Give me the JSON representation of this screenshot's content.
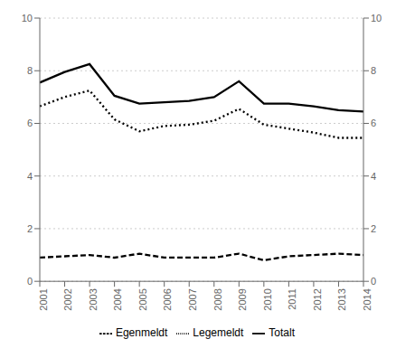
{
  "chart_data": {
    "type": "line",
    "x": [
      2001,
      2002,
      2003,
      2004,
      2005,
      2006,
      2007,
      2008,
      2009,
      2010,
      2011,
      2012,
      2013,
      2014
    ],
    "series": [
      {
        "name": "Totalt",
        "color": "#000000",
        "line_style": "solid",
        "values": [
          7.55,
          7.95,
          8.25,
          7.05,
          6.75,
          6.8,
          6.85,
          7.0,
          7.6,
          6.75,
          6.75,
          6.65,
          6.5,
          6.45
        ]
      },
      {
        "name": "Legemeldt",
        "color": "#000000",
        "line_style": "dotted",
        "values": [
          6.65,
          7.0,
          7.25,
          6.15,
          5.7,
          5.9,
          5.95,
          6.1,
          6.55,
          5.95,
          5.8,
          5.65,
          5.45,
          5.45
        ]
      },
      {
        "name": "Egenmeldt",
        "color": "#000000",
        "line_style": "dashed",
        "values": [
          0.9,
          0.95,
          1.0,
          0.9,
          1.05,
          0.9,
          0.9,
          0.9,
          1.05,
          0.8,
          0.95,
          1.0,
          1.05,
          1.0
        ]
      }
    ],
    "xlim": [
      2001,
      2014
    ],
    "xticks": [
      2001,
      2002,
      2003,
      2004,
      2005,
      2006,
      2007,
      2008,
      2009,
      2010,
      2011,
      2012,
      2013,
      2014
    ],
    "ylim": [
      0,
      10
    ],
    "yticks": [
      0,
      2,
      4,
      6,
      8,
      10
    ],
    "y2lim": [
      0,
      10
    ],
    "y2ticks": [
      0,
      2,
      4,
      6,
      8,
      10
    ],
    "grid": "y",
    "legend": "bottom"
  }
}
